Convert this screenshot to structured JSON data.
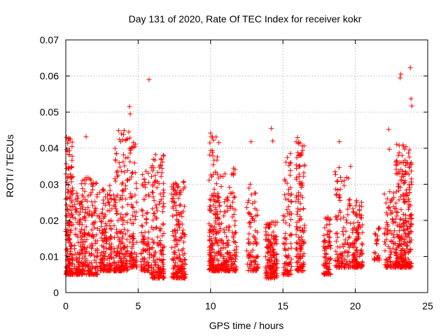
{
  "chart_data": {
    "type": "scatter",
    "title": "Day 131 of 2020, Rate Of TEC Index for receiver kokr",
    "xlabel": "GPS time / hours",
    "ylabel": "ROTI / TECUs",
    "xlim": [
      0,
      25
    ],
    "ylim": [
      0,
      0.07
    ],
    "x_ticks": [
      0,
      5,
      10,
      15,
      20,
      25
    ],
    "y_ticks": [
      0,
      0.01,
      0.02,
      0.03,
      0.04,
      0.05,
      0.06,
      0.07
    ],
    "x_tick_labels": [
      "0",
      "5",
      "10",
      "15",
      "20",
      "25"
    ],
    "y_tick_labels": [
      "0",
      "0.01",
      "0.02",
      "0.03",
      "0.04",
      "0.05",
      "0.06",
      "0.07"
    ],
    "grid": true,
    "marker": "+",
    "color": "#ff0000",
    "clusters": [
      {
        "x": [
          0.0,
          0.5
        ],
        "y": [
          0.005,
          0.043
        ],
        "n": 170
      },
      {
        "x": [
          0.6,
          1.0
        ],
        "y": [
          0.005,
          0.028
        ],
        "n": 70
      },
      {
        "x": [
          1.0,
          2.2
        ],
        "y": [
          0.005,
          0.032
        ],
        "n": 200
      },
      {
        "x": [
          2.3,
          3.2
        ],
        "y": [
          0.006,
          0.03
        ],
        "n": 150
      },
      {
        "x": [
          3.3,
          4.3
        ],
        "y": [
          0.006,
          0.045
        ],
        "n": 200
      },
      {
        "x": [
          4.4,
          4.9
        ],
        "y": [
          0.007,
          0.043
        ],
        "n": 90
      },
      {
        "x": [
          5.2,
          5.8
        ],
        "y": [
          0.006,
          0.034
        ],
        "n": 90
      },
      {
        "x": [
          5.9,
          6.8
        ],
        "y": [
          0.004,
          0.039
        ],
        "n": 170
      },
      {
        "x": [
          7.3,
          8.3
        ],
        "y": [
          0.004,
          0.031
        ],
        "n": 180
      },
      {
        "x": [
          9.9,
          10.6
        ],
        "y": [
          0.006,
          0.044
        ],
        "n": 190
      },
      {
        "x": [
          10.6,
          11.8
        ],
        "y": [
          0.006,
          0.035
        ],
        "n": 170
      },
      {
        "x": [
          12.5,
          13.3
        ],
        "y": [
          0.006,
          0.03
        ],
        "n": 90
      },
      {
        "x": [
          13.8,
          14.6
        ],
        "y": [
          0.004,
          0.02
        ],
        "n": 160
      },
      {
        "x": [
          15.0,
          15.6
        ],
        "y": [
          0.005,
          0.039
        ],
        "n": 90
      },
      {
        "x": [
          15.9,
          16.5
        ],
        "y": [
          0.006,
          0.043
        ],
        "n": 130
      },
      {
        "x": [
          17.8,
          18.3
        ],
        "y": [
          0.005,
          0.021
        ],
        "n": 80
      },
      {
        "x": [
          18.6,
          19.7
        ],
        "y": [
          0.007,
          0.035
        ],
        "n": 120
      },
      {
        "x": [
          19.8,
          20.5
        ],
        "y": [
          0.007,
          0.026
        ],
        "n": 120
      },
      {
        "x": [
          21.3,
          21.7
        ],
        "y": [
          0.009,
          0.018
        ],
        "n": 25
      },
      {
        "x": [
          22.0,
          22.8
        ],
        "y": [
          0.007,
          0.028
        ],
        "n": 90
      },
      {
        "x": [
          22.8,
          23.9
        ],
        "y": [
          0.007,
          0.042
        ],
        "n": 280
      }
    ],
    "outliers": [
      {
        "x": 0.05,
        "y": 0.043
      },
      {
        "x": 1.4,
        "y": 0.0432
      },
      {
        "x": 4.35,
        "y": 0.0445
      },
      {
        "x": 4.4,
        "y": 0.0515
      },
      {
        "x": 4.45,
        "y": 0.0495
      },
      {
        "x": 5.75,
        "y": 0.059
      },
      {
        "x": 10.0,
        "y": 0.0442
      },
      {
        "x": 12.8,
        "y": 0.0418
      },
      {
        "x": 14.2,
        "y": 0.0455
      },
      {
        "x": 14.3,
        "y": 0.042
      },
      {
        "x": 18.9,
        "y": 0.0418
      },
      {
        "x": 22.3,
        "y": 0.0452
      },
      {
        "x": 22.35,
        "y": 0.0397
      },
      {
        "x": 23.1,
        "y": 0.0595
      },
      {
        "x": 23.15,
        "y": 0.0605
      },
      {
        "x": 23.8,
        "y": 0.0623
      },
      {
        "x": 23.85,
        "y": 0.0537
      },
      {
        "x": 23.9,
        "y": 0.0517
      }
    ]
  }
}
